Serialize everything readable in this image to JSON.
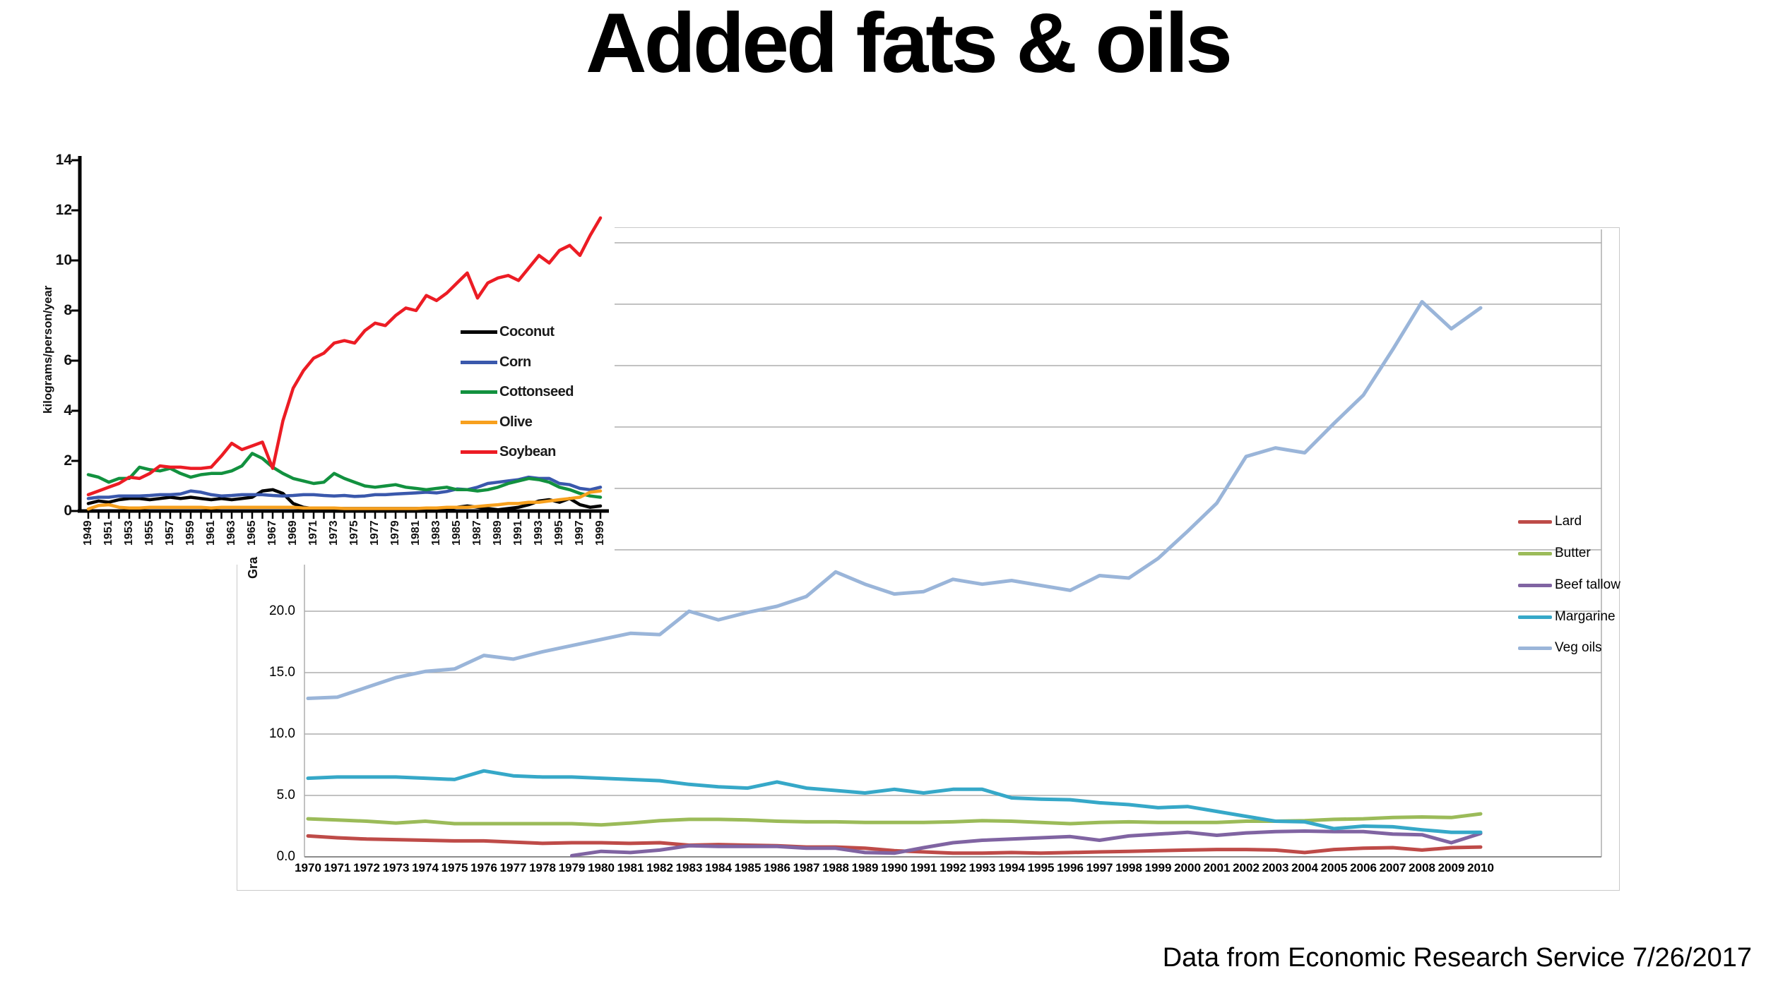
{
  "title": "Added fats & oils",
  "attribution": "Data from Economic Research Service   7/26/2017",
  "big_chart_partial_ylabel": "Gra",
  "chart_data": [
    {
      "name": "added-fats-and-oils-kilograms-per-person-1949-1999",
      "type": "line",
      "title": "",
      "xlabel": "",
      "ylabel": "kilograms/person/year",
      "ylim": [
        0,
        14
      ],
      "ytick_step": 2,
      "grid": false,
      "legend_position": "inside-right",
      "x": [
        1949,
        1950,
        1951,
        1952,
        1953,
        1954,
        1955,
        1956,
        1957,
        1958,
        1959,
        1960,
        1961,
        1962,
        1963,
        1964,
        1965,
        1966,
        1967,
        1968,
        1969,
        1970,
        1971,
        1972,
        1973,
        1974,
        1975,
        1976,
        1977,
        1978,
        1979,
        1980,
        1981,
        1982,
        1983,
        1984,
        1985,
        1986,
        1987,
        1988,
        1989,
        1990,
        1991,
        1992,
        1993,
        1994,
        1995,
        1996,
        1997,
        1998,
        1999
      ],
      "xtick_labels_every": "odd years, rotated 90",
      "series": [
        {
          "name": "Coconut",
          "color": "#000000",
          "values": [
            0.3,
            0.4,
            0.35,
            0.45,
            0.5,
            0.5,
            0.45,
            0.5,
            0.55,
            0.5,
            0.55,
            0.5,
            0.45,
            0.5,
            0.45,
            0.5,
            0.55,
            0.8,
            0.85,
            0.7,
            0.3,
            0.15,
            0.1,
            0.1,
            0.1,
            0.1,
            0.1,
            0.1,
            0.1,
            0.1,
            0.1,
            0.1,
            0.1,
            0.1,
            0.1,
            0.1,
            0.15,
            0.2,
            0.15,
            0.1,
            0.05,
            0.1,
            0.15,
            0.25,
            0.4,
            0.45,
            0.35,
            0.5,
            0.25,
            0.15,
            0.2
          ]
        },
        {
          "name": "Corn",
          "color": "#3A58AC",
          "values": [
            0.5,
            0.55,
            0.55,
            0.6,
            0.6,
            0.6,
            0.62,
            0.65,
            0.65,
            0.68,
            0.8,
            0.75,
            0.65,
            0.6,
            0.62,
            0.65,
            0.65,
            0.65,
            0.62,
            0.6,
            0.62,
            0.65,
            0.65,
            0.62,
            0.6,
            0.62,
            0.58,
            0.6,
            0.65,
            0.65,
            0.68,
            0.7,
            0.72,
            0.75,
            0.72,
            0.78,
            0.88,
            0.85,
            0.95,
            1.1,
            1.15,
            1.2,
            1.25,
            1.35,
            1.3,
            1.3,
            1.1,
            1.05,
            0.9,
            0.85,
            0.95
          ]
        },
        {
          "name": "Cottonseed",
          "color": "#12913F",
          "values": [
            1.45,
            1.35,
            1.15,
            1.3,
            1.3,
            1.75,
            1.65,
            1.6,
            1.7,
            1.5,
            1.35,
            1.45,
            1.5,
            1.5,
            1.6,
            1.8,
            2.3,
            2.1,
            1.75,
            1.5,
            1.3,
            1.2,
            1.1,
            1.15,
            1.5,
            1.3,
            1.15,
            1.0,
            0.95,
            1.0,
            1.05,
            0.95,
            0.9,
            0.85,
            0.9,
            0.95,
            0.85,
            0.85,
            0.8,
            0.85,
            0.95,
            1.1,
            1.2,
            1.3,
            1.25,
            1.15,
            0.95,
            0.85,
            0.7,
            0.6,
            0.55
          ]
        },
        {
          "name": "Olive",
          "color": "#F7A01E",
          "values": [
            0.08,
            0.22,
            0.25,
            0.15,
            0.12,
            0.12,
            0.15,
            0.15,
            0.15,
            0.15,
            0.15,
            0.15,
            0.12,
            0.15,
            0.15,
            0.15,
            0.15,
            0.15,
            0.15,
            0.15,
            0.15,
            0.12,
            0.12,
            0.12,
            0.12,
            0.1,
            0.1,
            0.1,
            0.1,
            0.1,
            0.1,
            0.1,
            0.1,
            0.12,
            0.12,
            0.15,
            0.15,
            0.15,
            0.18,
            0.22,
            0.25,
            0.3,
            0.3,
            0.35,
            0.35,
            0.4,
            0.45,
            0.5,
            0.55,
            0.75,
            0.8
          ]
        },
        {
          "name": "Soybean",
          "color": "#EC1C24",
          "values": [
            0.65,
            0.8,
            0.95,
            1.1,
            1.35,
            1.3,
            1.5,
            1.8,
            1.75,
            1.75,
            1.7,
            1.7,
            1.75,
            2.2,
            2.7,
            2.45,
            2.6,
            2.75,
            1.7,
            3.6,
            4.9,
            5.6,
            6.1,
            6.3,
            6.7,
            6.8,
            6.7,
            7.2,
            7.5,
            7.4,
            7.8,
            8.1,
            8.0,
            8.6,
            8.4,
            8.7,
            9.1,
            9.5,
            8.5,
            9.1,
            9.3,
            9.4,
            9.2,
            9.7,
            10.2,
            9.9,
            10.4,
            10.6,
            10.2,
            11.0,
            11.7
          ]
        }
      ]
    },
    {
      "name": "added-fats-grams-per-day-1970-2010",
      "type": "line",
      "title": "",
      "xlabel": "",
      "ylabel_visible": "Gra",
      "ylim": [
        0,
        51
      ],
      "ytick_step": 5,
      "ytick_format": "0.0",
      "visible_ytick_labels": [
        "0.0",
        "5.0",
        "10.0",
        "15.0",
        "20.0"
      ],
      "grid": true,
      "legend_position": "inside-right",
      "x": [
        1970,
        1971,
        1972,
        1973,
        1974,
        1975,
        1976,
        1977,
        1978,
        1979,
        1980,
        1981,
        1982,
        1983,
        1984,
        1985,
        1986,
        1987,
        1988,
        1989,
        1990,
        1991,
        1992,
        1993,
        1994,
        1995,
        1996,
        1997,
        1998,
        1999,
        2000,
        2001,
        2002,
        2003,
        2004,
        2005,
        2006,
        2007,
        2008,
        2009,
        2010
      ],
      "series": [
        {
          "name": "Lard",
          "color": "#BE4B48",
          "values": [
            1.7,
            1.55,
            1.45,
            1.4,
            1.35,
            1.3,
            1.3,
            1.2,
            1.1,
            1.15,
            1.15,
            1.1,
            1.15,
            0.95,
            1.0,
            0.95,
            0.9,
            0.8,
            0.8,
            0.7,
            0.5,
            0.4,
            0.3,
            0.3,
            0.35,
            0.3,
            0.35,
            0.4,
            0.45,
            0.5,
            0.55,
            0.6,
            0.6,
            0.55,
            0.35,
            0.6,
            0.7,
            0.75,
            0.55,
            0.75,
            0.8
          ]
        },
        {
          "name": "Butter",
          "color": "#9BBB59",
          "values": [
            3.1,
            3.0,
            2.9,
            2.75,
            2.9,
            2.7,
            2.7,
            2.7,
            2.7,
            2.7,
            2.6,
            2.75,
            2.95,
            3.05,
            3.05,
            3.0,
            2.9,
            2.85,
            2.85,
            2.8,
            2.8,
            2.8,
            2.85,
            2.95,
            2.9,
            2.8,
            2.7,
            2.8,
            2.85,
            2.8,
            2.8,
            2.8,
            2.9,
            2.9,
            2.95,
            3.05,
            3.1,
            3.2,
            3.25,
            3.2,
            3.5
          ]
        },
        {
          "name": "Beef tallow",
          "color": "#8064A2",
          "values": [
            null,
            null,
            null,
            null,
            null,
            null,
            null,
            null,
            null,
            0.1,
            0.45,
            0.35,
            0.55,
            0.9,
            0.85,
            0.85,
            0.85,
            0.7,
            0.7,
            0.35,
            0.3,
            0.75,
            1.15,
            1.35,
            1.45,
            1.55,
            1.65,
            1.35,
            1.7,
            1.85,
            2.0,
            1.75,
            1.95,
            2.05,
            2.1,
            2.05,
            2.05,
            1.85,
            1.8,
            1.15,
            1.9
          ]
        },
        {
          "name": "Margarine",
          "color": "#36A8C8",
          "values": [
            6.4,
            6.5,
            6.5,
            6.5,
            6.4,
            6.3,
            7.0,
            6.6,
            6.5,
            6.5,
            6.4,
            6.3,
            6.2,
            5.9,
            5.7,
            5.6,
            6.1,
            5.6,
            5.4,
            5.2,
            5.5,
            5.2,
            5.5,
            5.5,
            4.8,
            4.7,
            4.65,
            4.4,
            4.25,
            4.0,
            4.1,
            3.7,
            3.3,
            2.9,
            2.85,
            2.3,
            2.5,
            2.45,
            2.2,
            2.0,
            2.0
          ]
        },
        {
          "name": "Veg oils",
          "color": "#9AB5D9",
          "values": [
            12.9,
            13.0,
            13.8,
            14.6,
            15.1,
            15.3,
            16.4,
            16.1,
            16.7,
            17.2,
            17.7,
            18.2,
            18.1,
            20.0,
            19.3,
            19.9,
            20.4,
            21.2,
            23.2,
            22.2,
            21.4,
            21.6,
            22.6,
            22.2,
            22.5,
            22.1,
            21.7,
            22.9,
            22.7,
            24.3,
            26.5,
            28.8,
            32.6,
            33.3,
            32.9,
            35.3,
            37.6,
            41.3,
            45.2,
            43.0,
            44.7
          ]
        }
      ]
    }
  ]
}
